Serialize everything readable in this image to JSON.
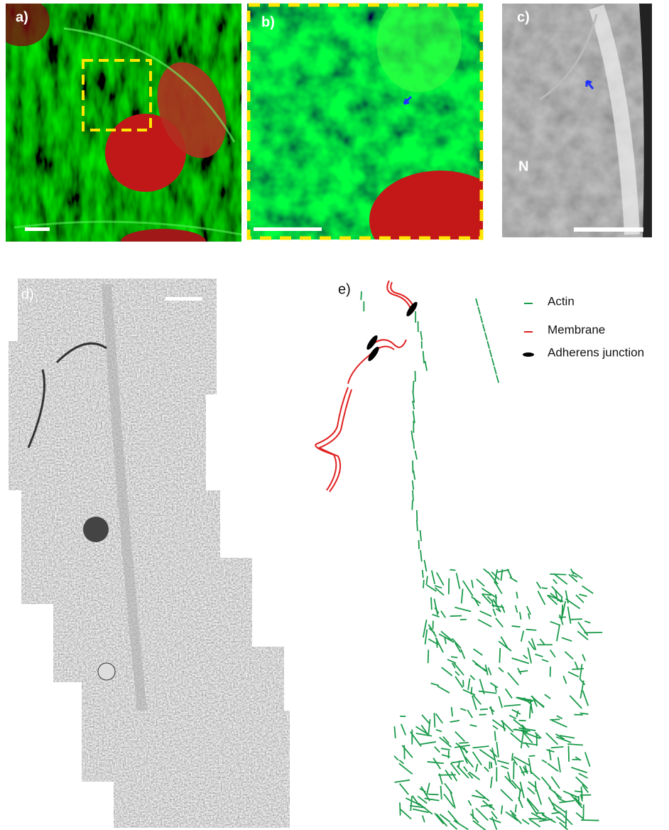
{
  "panels": {
    "a": {
      "label": "a)"
    },
    "b": {
      "label": "b)"
    },
    "c": {
      "label": "c)",
      "nucleus_label": "N"
    },
    "d": {
      "label": "d)"
    },
    "e": {
      "label": "e)"
    }
  },
  "legend": {
    "items": [
      "Actin",
      "Membrane",
      "Adherens junction"
    ]
  }
}
